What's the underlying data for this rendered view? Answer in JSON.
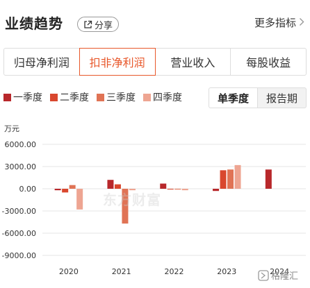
{
  "header": {
    "title": "业绩趋势",
    "share_label": "分享",
    "more_label": "更多指标"
  },
  "tabs": [
    {
      "label": "归母净利润",
      "active": false
    },
    {
      "label": "扣非净利润",
      "active": true
    },
    {
      "label": "营业收入",
      "active": false
    },
    {
      "label": "每股收益",
      "active": false
    }
  ],
  "periods": [
    {
      "label": "单季度",
      "active": true
    },
    {
      "label": "报告期",
      "active": false
    }
  ],
  "colors": {
    "accent": "#e8572a",
    "q1": "#b8282b",
    "q2": "#d9472e",
    "q3": "#e07355",
    "q4": "#eea592"
  },
  "watermark": "东方财富",
  "corner_mark": "格隆汇",
  "chart_data": {
    "type": "bar",
    "unit_label": "万元",
    "categories": [
      "2020",
      "2021",
      "2022",
      "2023",
      "2024"
    ],
    "series": [
      {
        "name": "一季度",
        "color": "#b8282b",
        "values": [
          -200,
          1200,
          700,
          -300,
          2600
        ]
      },
      {
        "name": "二季度",
        "color": "#d9472e",
        "values": [
          -500,
          600,
          -100,
          2500,
          null
        ]
      },
      {
        "name": "三季度",
        "color": "#e07355",
        "values": [
          500,
          -4700,
          -100,
          2600,
          null
        ]
      },
      {
        "name": "四季度",
        "color": "#eea592",
        "values": [
          -2800,
          -200,
          -200,
          3200,
          null
        ]
      }
    ],
    "yticks": [
      "6000.00",
      "3000.00",
      "0.00",
      "-3000.00",
      "-6000.00",
      "-9000.00"
    ],
    "ylim": [
      -9000,
      6000
    ],
    "grid": true,
    "legend": "top-left"
  }
}
